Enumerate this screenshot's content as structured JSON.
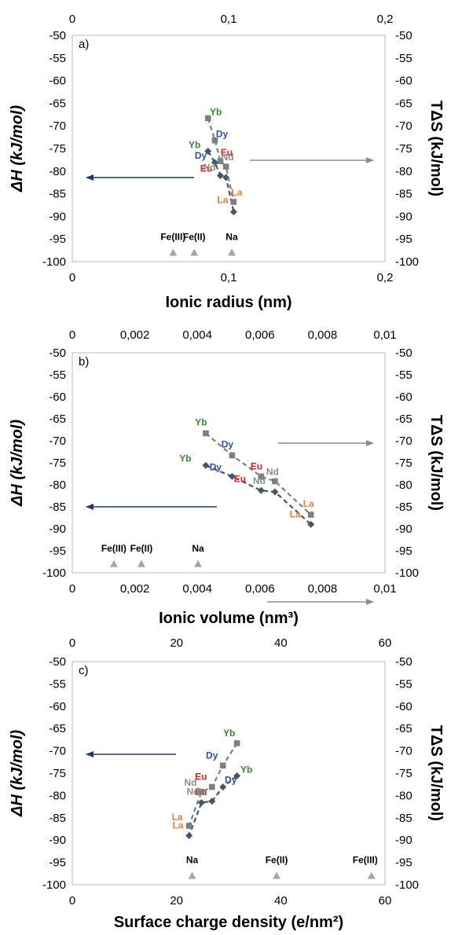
{
  "colors": {
    "enthalpy": "#44546a",
    "entropy": "#7f7f7f",
    "ion": "#a6a6a6",
    "blue_arrow": "#1f3a6b",
    "grey_arrow": "#8c8c8c",
    "Yb": "#2e8b2e",
    "Dy": "#2f4fb0",
    "Eu": "#e02020",
    "Nd": "#8c8c8c",
    "La": "#ed7d31",
    "ion_label": "#000000"
  },
  "chart_data": [
    {
      "type": "scatter",
      "panel_label": "a)",
      "xlabel": "Ionic radius (nm)",
      "ylabel_left": "ΔH (kJ/mol)",
      "ylabel_right": "TΔS (kJ/mol)",
      "xlim": [
        0,
        0.2
      ],
      "ylim": [
        -100,
        -50
      ],
      "x_ticks": [
        "0",
        "0,1",
        "0,2"
      ],
      "top_x_ticks": [
        "0",
        "0,1",
        "0,2"
      ],
      "y_ticks": [
        "-50",
        "-55",
        "-60",
        "-65",
        "-70",
        "-75",
        "-80",
        "-85",
        "-90",
        "-95",
        "-100"
      ],
      "grid": false,
      "series": [
        {
          "x": [
            0.0868,
            0.0912,
            0.0947,
            0.0983,
            0.1032
          ],
          "y": [
            -75.6,
            -78.1,
            -81.0,
            -81.4,
            -89.0
          ],
          "labels": [
            "Yb",
            "Dy",
            "Eu",
            "Nd",
            "La"
          ]
        },
        {
          "x": [
            0.0868,
            0.0912,
            0.0947,
            0.0983,
            0.1032
          ],
          "y": [
            -68.3,
            -73.2,
            -77.8,
            -79.0,
            -86.8
          ],
          "labels": [
            "Yb",
            "Dy",
            "Eu",
            "Nd",
            "La"
          ]
        },
        {
          "x": [
            0.0645,
            0.078,
            0.102
          ],
          "y": [
            -98,
            -98,
            -98
          ],
          "labels": [
            "Fe(III)",
            "Fe(II)",
            "Na"
          ]
        }
      ]
    },
    {
      "type": "scatter",
      "panel_label": "b)",
      "xlabel": "Ionic volume (nm³)",
      "ylabel_left": "ΔH (kJ/mol)",
      "ylabel_right": "TΔS (kJ/mol)",
      "xlim": [
        0,
        0.01
      ],
      "ylim": [
        -100,
        -50
      ],
      "x_ticks": [
        "0",
        "0,002",
        "0,004",
        "0,006",
        "0,008",
        "0,01"
      ],
      "top_x_ticks": [
        "0",
        "0,002",
        "0,004",
        "0,006",
        "0,008",
        "0,01"
      ],
      "y_ticks": [
        "-50",
        "-55",
        "-60",
        "-65",
        "-70",
        "-75",
        "-80",
        "-85",
        "-90",
        "-95",
        "-100"
      ],
      "grid": false,
      "series": [
        {
          "x": [
            0.00427,
            0.00511,
            0.00604,
            0.00648,
            0.00763
          ],
          "y": [
            -75.6,
            -78.1,
            -81.3,
            -81.6,
            -89.0
          ],
          "labels": [
            "Yb",
            "Dy",
            "Eu",
            "Nd",
            "La"
          ]
        },
        {
          "x": [
            0.00427,
            0.00511,
            0.00604,
            0.00648,
            0.00763
          ],
          "y": [
            -68.3,
            -73.3,
            -78.1,
            -79.2,
            -86.8
          ],
          "labels": [
            "Yb",
            "Dy",
            "Eu",
            "Nd",
            "La"
          ]
        },
        {
          "x": [
            0.00133,
            0.00221,
            0.00402
          ],
          "y": [
            -98,
            -98,
            -98
          ],
          "labels": [
            "Fe(III)",
            "Fe(II)",
            "Na"
          ]
        }
      ]
    },
    {
      "type": "scatter",
      "panel_label": "c)",
      "xlabel": "Surface charge density (e/nm²)",
      "ylabel_left": "ΔH (kJ/mol)",
      "ylabel_right": "TΔS (kJ/mol)",
      "xlim": [
        0,
        60
      ],
      "ylim": [
        -100,
        -50
      ],
      "x_ticks": [
        "0",
        "20",
        "40",
        "60"
      ],
      "top_x_ticks": [
        "0",
        "20",
        "40",
        "60"
      ],
      "y_ticks": [
        "-50",
        "-55",
        "-60",
        "-65",
        "-70",
        "-75",
        "-80",
        "-85",
        "-90",
        "-95",
        "-100"
      ],
      "grid": false,
      "series": [
        {
          "x": [
            31.6,
            28.9,
            26.8,
            24.8,
            22.4
          ],
          "y": [
            -75.6,
            -78.1,
            -81.3,
            -81.6,
            -89.0
          ],
          "labels": [
            "Yb",
            "Dy",
            "Eu",
            "Nd",
            "La"
          ]
        },
        {
          "x": [
            31.6,
            28.9,
            26.8,
            24.8,
            22.4
          ],
          "y": [
            -68.3,
            -73.3,
            -78.1,
            -79.2,
            -86.8
          ],
          "labels": [
            "Yb",
            "Dy",
            "Eu",
            "Nd",
            "La"
          ]
        },
        {
          "x": [
            23.0,
            39.2,
            57.4
          ],
          "y": [
            -98,
            -98,
            -98
          ],
          "labels": [
            "Na",
            "Fe(II)",
            "Fe(III)"
          ]
        }
      ]
    }
  ]
}
